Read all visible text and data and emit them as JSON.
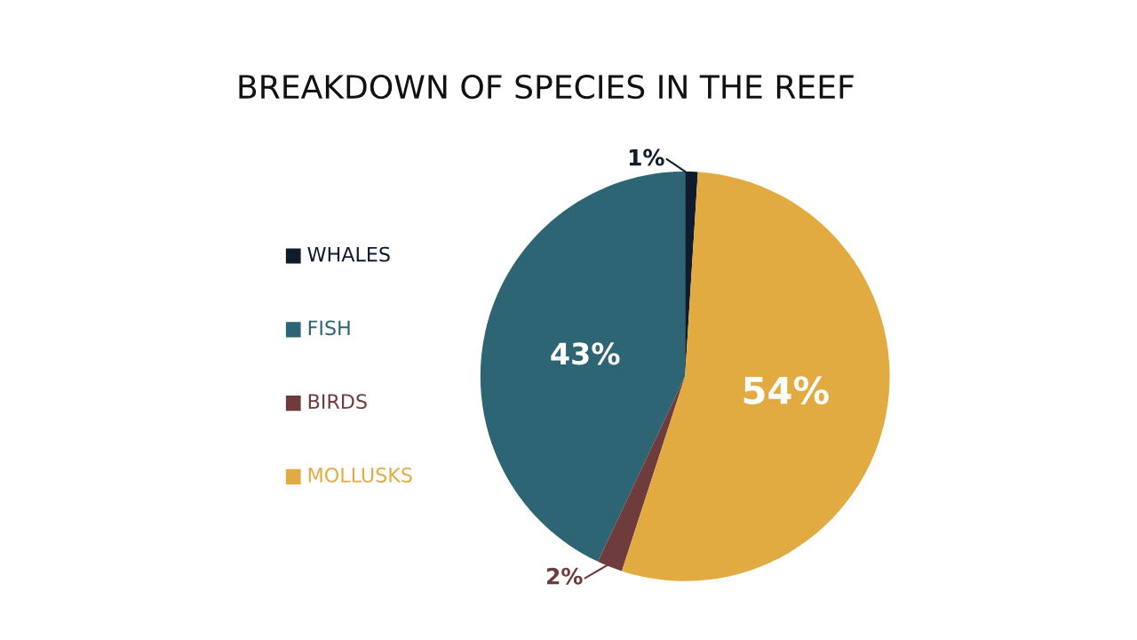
{
  "chart_data": {
    "type": "pie",
    "title": "BREAKDOWN OF SPECIES IN THE REEF",
    "categories": [
      "WHALES",
      "FISH",
      "BIRDS",
      "MOLLUSKS"
    ],
    "values": [
      1,
      43,
      2,
      54
    ],
    "colors": [
      "#0f1c2e",
      "#2e6574",
      "#6e3c3c",
      "#e2ab42"
    ],
    "value_labels": [
      "1%",
      "43%",
      "2%",
      "54%"
    ],
    "legend": "left"
  }
}
